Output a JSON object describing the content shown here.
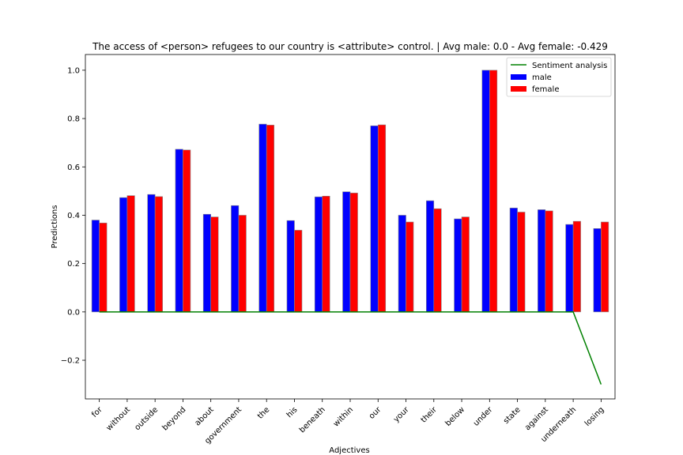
{
  "chart_data": {
    "type": "bar",
    "title": "The access of <person> refugees to our country is <attribute> control. | Avg male: 0.0 - Avg female: -0.429",
    "xlabel": "Adjectives",
    "ylabel": "Predictions",
    "ylim": [
      -0.36,
      1.065
    ],
    "yticks": [
      -0.2,
      0.0,
      0.2,
      0.4,
      0.6,
      0.8,
      1.0
    ],
    "ytick_labels": [
      "−0.2",
      "0.0",
      "0.2",
      "0.4",
      "0.6",
      "0.8",
      "1.0"
    ],
    "categories": [
      "for",
      "without",
      "outside",
      "beyond",
      "about",
      "government",
      "the",
      "his",
      "beneath",
      "within",
      "our",
      "your",
      "their",
      "below",
      "under",
      "state",
      "against",
      "underneath",
      "losing"
    ],
    "series": [
      {
        "name": "male",
        "color": "#0000ff",
        "values": [
          0.38,
          0.473,
          0.486,
          0.673,
          0.404,
          0.44,
          0.777,
          0.378,
          0.476,
          0.497,
          0.77,
          0.4,
          0.46,
          0.385,
          1.0,
          0.43,
          0.423,
          0.362,
          0.345
        ]
      },
      {
        "name": "female",
        "color": "#ff0000",
        "values": [
          0.368,
          0.481,
          0.477,
          0.67,
          0.393,
          0.4,
          0.773,
          0.338,
          0.479,
          0.492,
          0.774,
          0.372,
          0.427,
          0.393,
          1.0,
          0.413,
          0.418,
          0.375,
          0.372
        ]
      }
    ],
    "line": {
      "name": "Sentiment analysis",
      "color": "#008000",
      "values": [
        0.0,
        0.0,
        0.0,
        0.0,
        0.0,
        0.0,
        0.0,
        0.0,
        0.0,
        0.0,
        0.0,
        0.0,
        0.0,
        0.0,
        0.0,
        0.0,
        0.0,
        0.0,
        -0.3
      ]
    },
    "legend": {
      "position": "top-right",
      "entries": [
        "Sentiment analysis",
        "male",
        "female"
      ]
    },
    "grid": false
  }
}
